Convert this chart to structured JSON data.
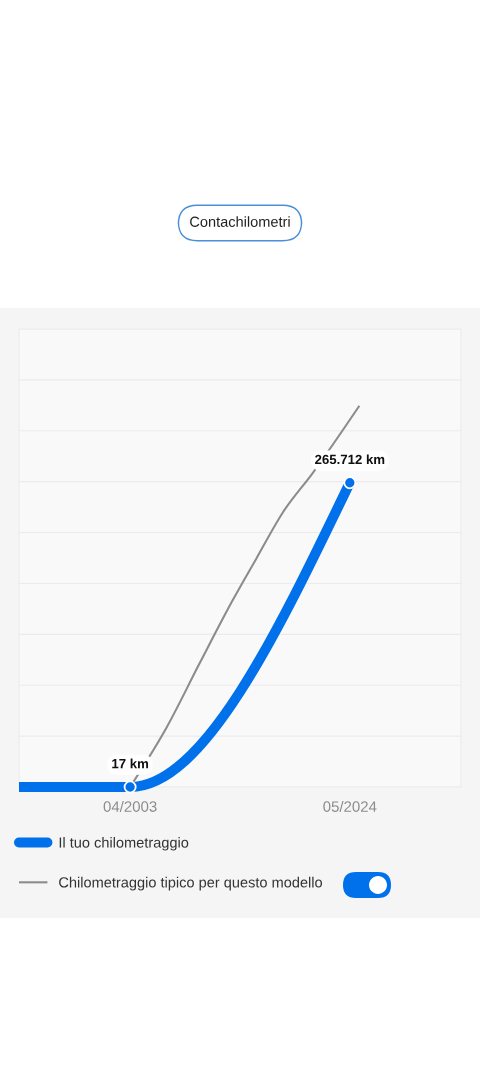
{
  "chart_data": {
    "type": "line",
    "title": "Contachilometri",
    "xlim": [
      "1992-08",
      "2035-01"
    ],
    "xticks": [
      {
        "value": "2003-04",
        "label": "04/2003"
      },
      {
        "value": "2024-05",
        "label": "05/2024"
      }
    ],
    "ylim": [
      0,
      400000
    ],
    "yticks": [
      {
        "value": 0,
        "label": null
      },
      {
        "value": 44444,
        "label": null
      },
      {
        "value": 88889,
        "label": null
      },
      {
        "value": 133333,
        "label": null
      },
      {
        "value": 177778,
        "label": null
      },
      {
        "value": 222222,
        "label": null
      },
      {
        "value": 266667,
        "label": null
      },
      {
        "value": 311111,
        "label": null
      },
      {
        "value": 355556,
        "label": null
      },
      {
        "value": 400000,
        "label": null
      }
    ],
    "tick_labels": "x",
    "grid": "y",
    "legend": "bottom",
    "series": [
      {
        "name": "Il tuo chilometraggio",
        "color": "#0071eb",
        "marker": "circle",
        "x": [
          "1992-08",
          "2003-04",
          "2024-05"
        ],
        "values": [
          17,
          17,
          265712
        ],
        "value_labels": [
          null,
          "17 km",
          "265.712 km"
        ]
      },
      {
        "name": "Chilometraggio tipico per questo modello",
        "color": "#8c8c8c",
        "marker": "none",
        "x": [
          "2003-04",
          "2006-10",
          "2009-12",
          "2013-02",
          "2015-05",
          "2017-12",
          "2020-10",
          "2025-04"
        ],
        "values": [
          0,
          52000,
          108000,
          163000,
          199000,
          240000,
          274000,
          333000
        ]
      }
    ]
  }
}
